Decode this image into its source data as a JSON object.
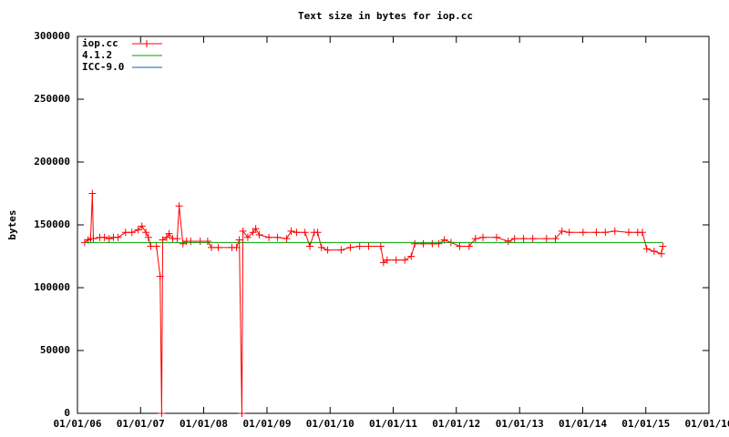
{
  "chart_data": {
    "type": "line",
    "title": "Text size in bytes for iop.cc",
    "ylabel": "bytes",
    "xlim": [
      "2006-01-01",
      "2016-01-01"
    ],
    "xticks": [
      {
        "value": "2006-01-01",
        "label": "01/01/06"
      },
      {
        "value": "2007-01-01",
        "label": "01/01/07"
      },
      {
        "value": "2008-01-01",
        "label": "01/01/08"
      },
      {
        "value": "2009-01-01",
        "label": "01/01/09"
      },
      {
        "value": "2010-01-01",
        "label": "01/01/10"
      },
      {
        "value": "2011-01-01",
        "label": "01/01/11"
      },
      {
        "value": "2012-01-01",
        "label": "01/01/12"
      },
      {
        "value": "2013-01-01",
        "label": "01/01/13"
      },
      {
        "value": "2014-01-01",
        "label": "01/01/14"
      },
      {
        "value": "2015-01-01",
        "label": "01/01/15"
      },
      {
        "value": "2016-01-01",
        "label": "01/01/16"
      }
    ],
    "ylim": [
      0,
      300000
    ],
    "yticks": [
      0,
      50000,
      100000,
      150000,
      200000,
      250000,
      300000
    ],
    "grid": false,
    "legend": "top-left",
    "series": [
      {
        "name": "iop.cc",
        "color": "#ff0000",
        "markers": true,
        "x": [
          "2006-02-12",
          "2006-03-04",
          "2006-03-18",
          "2006-03-28",
          "2006-04-03",
          "2006-05-10",
          "2006-06-06",
          "2006-07-03",
          "2006-07-28",
          "2006-08-24",
          "2006-10-06",
          "2006-11-12",
          "2006-12-18",
          "2007-01-09",
          "2007-02-01",
          "2007-02-15",
          "2007-03-01",
          "2007-04-03",
          "2007-04-24",
          "2007-05-03",
          "2007-05-09",
          "2007-06-01",
          "2007-06-15",
          "2007-07-06",
          "2007-08-01",
          "2007-08-12",
          "2007-09-03",
          "2007-09-24",
          "2007-10-18",
          "2007-12-12",
          "2008-01-24",
          "2008-02-15",
          "2008-03-25",
          "2008-06-12",
          "2008-07-09",
          "2008-07-25",
          "2008-08-09",
          "2008-08-15",
          "2008-09-12",
          "2008-10-12",
          "2008-10-28",
          "2008-11-18",
          "2009-01-12",
          "2009-03-03",
          "2009-04-25",
          "2009-05-21",
          "2009-06-21",
          "2009-08-09",
          "2009-09-06",
          "2009-10-01",
          "2009-10-21",
          "2009-11-12",
          "2009-12-18",
          "2010-03-06",
          "2010-04-28",
          "2010-06-21",
          "2010-08-12",
          "2010-10-21",
          "2010-11-06",
          "2010-11-27",
          "2011-01-18",
          "2011-03-09",
          "2011-04-15",
          "2011-05-06",
          "2011-06-24",
          "2011-08-15",
          "2011-09-21",
          "2011-10-24",
          "2011-12-01",
          "2012-01-21",
          "2012-03-15",
          "2012-04-21",
          "2012-06-03",
          "2012-08-21",
          "2012-10-27",
          "2012-12-03",
          "2013-01-24",
          "2013-03-18",
          "2013-06-06",
          "2013-07-27",
          "2013-09-03",
          "2013-10-15",
          "2014-01-03",
          "2014-03-21",
          "2014-05-12",
          "2014-07-06",
          "2014-09-24",
          "2014-11-15",
          "2014-12-12",
          "2015-01-06",
          "2015-02-18",
          "2015-04-01",
          "2015-04-09"
        ],
        "values": [
          136000,
          138000,
          139000,
          175000,
          139000,
          140000,
          140000,
          139000,
          140000,
          140000,
          144000,
          144000,
          146000,
          149000,
          144000,
          140000,
          133000,
          133000,
          109000,
          0,
          138000,
          140000,
          143000,
          139000,
          139000,
          165000,
          135000,
          137000,
          137000,
          137000,
          137000,
          132000,
          132000,
          132000,
          132000,
          138000,
          0,
          145000,
          140000,
          144000,
          147000,
          142000,
          140000,
          140000,
          139000,
          145000,
          144000,
          144000,
          133000,
          144000,
          144000,
          132000,
          130000,
          130000,
          132000,
          133000,
          133000,
          133000,
          120000,
          122000,
          122000,
          122000,
          125000,
          135000,
          135000,
          135000,
          135000,
          138000,
          136000,
          133000,
          133000,
          139000,
          140000,
          140000,
          137000,
          139000,
          139000,
          139000,
          139000,
          139000,
          145000,
          144000,
          144000,
          144000,
          144000,
          145000,
          144000,
          144000,
          144000,
          131000,
          129000,
          127000,
          133000
        ]
      },
      {
        "name": "4.1.2",
        "color": "#00a000",
        "markers": false,
        "x": [
          "2006-02-12",
          "2015-04-09"
        ],
        "values": [
          136000,
          136000
        ]
      },
      {
        "name": "ICC-9.0",
        "color": "#0060c0",
        "markers": false,
        "x": [],
        "values": []
      }
    ]
  }
}
